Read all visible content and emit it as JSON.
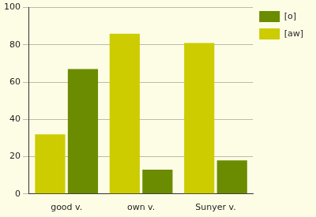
{
  "chart_data": {
    "type": "bar",
    "categories": [
      "good v.",
      "own v.",
      "Sunyer v."
    ],
    "series": [
      {
        "name": "[aw]",
        "color": "#cccc00",
        "values": [
          32,
          86,
          81
        ]
      },
      {
        "name": "[o]",
        "color": "#6b8c00",
        "values": [
          67,
          13,
          18
        ]
      }
    ],
    "ylim": [
      0,
      100
    ],
    "yticks": [
      0,
      20,
      40,
      60,
      80,
      100
    ],
    "grid": true,
    "legend": "upper right"
  }
}
